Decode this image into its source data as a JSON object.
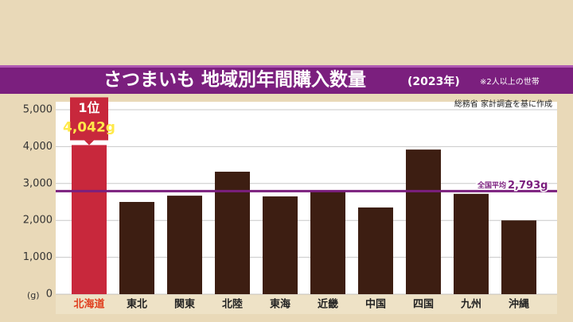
{
  "chart_data": {
    "type": "bar",
    "title": "さつまいも 地域別年間購入数量",
    "subtitle": "(2023年)",
    "note": "※2人以上の世帯",
    "source": "総務省 家計調査を基に作成",
    "y_unit": "(g)",
    "categories": [
      "北海道",
      "東北",
      "関東",
      "北陸",
      "東海",
      "近畿",
      "中国",
      "四国",
      "九州",
      "沖縄"
    ],
    "values": [
      4042,
      2500,
      2670,
      3320,
      2650,
      2800,
      2350,
      3920,
      2720,
      2000
    ],
    "value_labels": [
      "4,042g",
      null,
      null,
      null,
      null,
      null,
      null,
      null,
      null,
      null
    ],
    "rank_label": "1位",
    "color": "#3d1e12",
    "highlight_color": "#c8283c",
    "ylim": [
      0,
      5000
    ],
    "yticks": [
      0,
      {
        "value": 1000,
        "label": "1,000"
      },
      {
        "value": 2000,
        "label": "2,000"
      },
      {
        "value": 3000,
        "label": "3,000"
      },
      {
        "value": 4000,
        "label": "4,000"
      },
      {
        "value": 5000,
        "label": "5,000"
      }
    ],
    "grid": true,
    "reference_line": {
      "label": "全国平均",
      "value": 2793,
      "value_label": "2,793g",
      "color": "#7b1f7e"
    }
  }
}
